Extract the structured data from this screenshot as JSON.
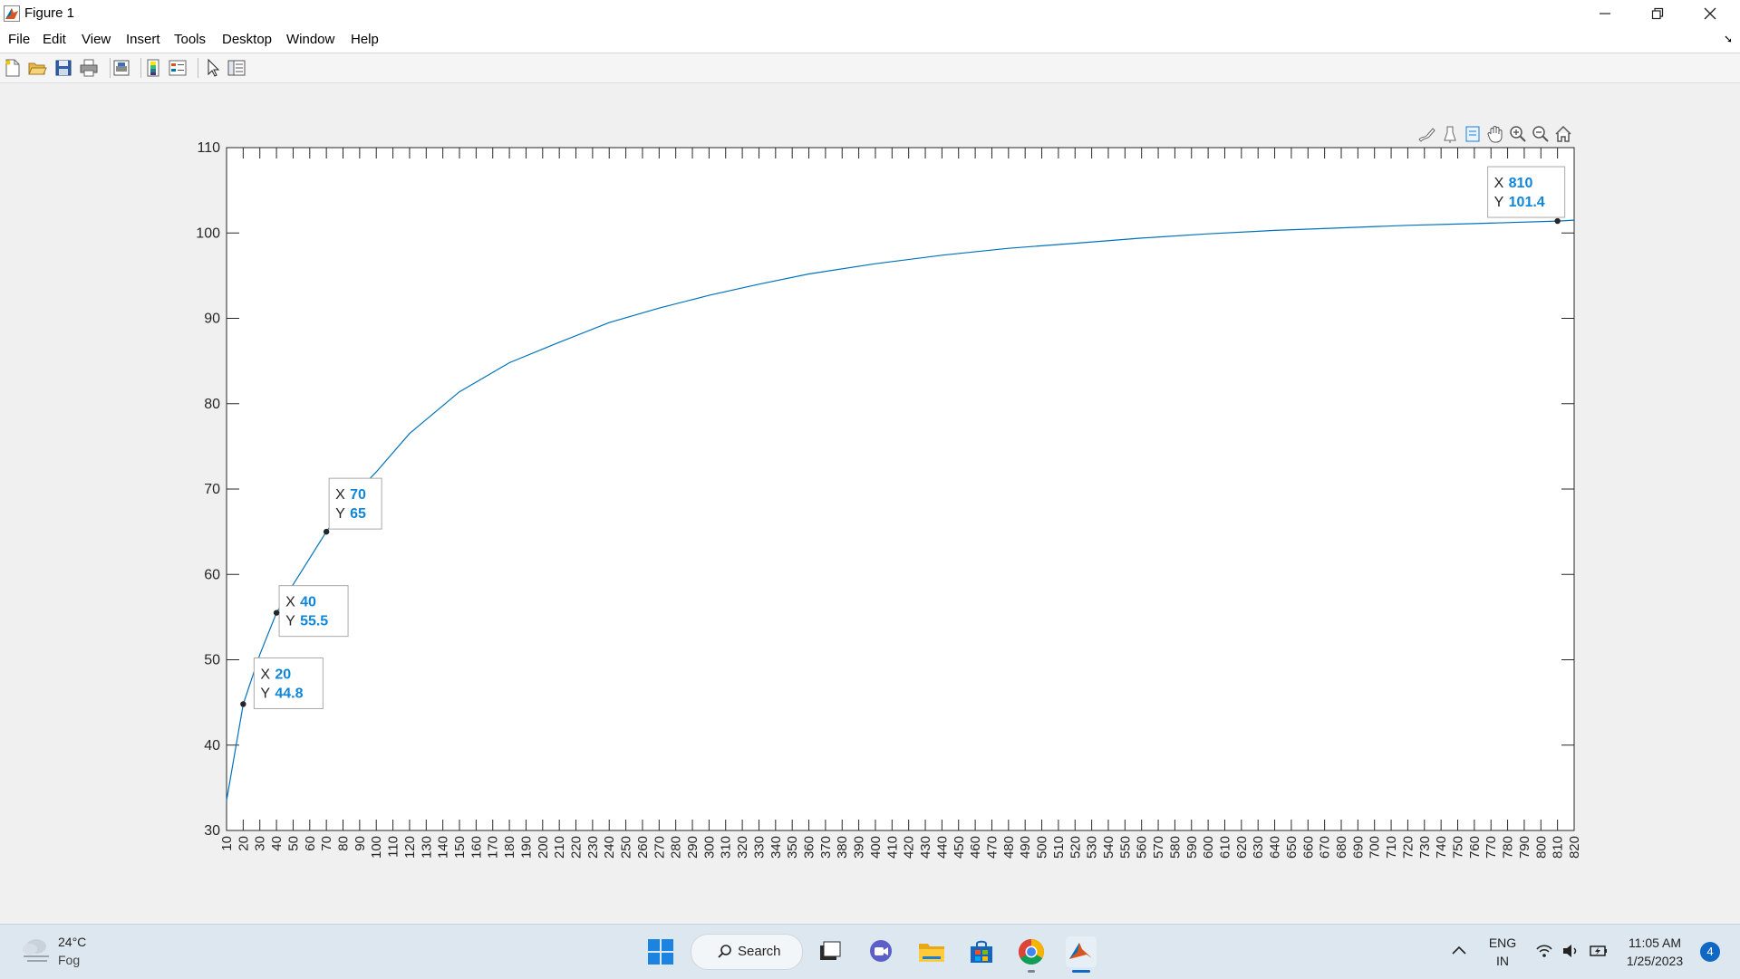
{
  "window": {
    "title": "Figure 1",
    "controls": [
      "minimize",
      "restore",
      "close"
    ]
  },
  "menu": [
    "File",
    "Edit",
    "View",
    "Insert",
    "Tools",
    "Desktop",
    "Window",
    "Help"
  ],
  "toolbar_icons": [
    "new-figure-icon",
    "open-file-icon",
    "save-icon",
    "print-icon",
    "print-preview-icon",
    "colorbar-icon",
    "legend-icon",
    "edit-plot-pointer-icon",
    "property-inspector-icon"
  ],
  "axes_toolbar_icons": [
    "brush-icon",
    "data-tips-icon",
    "select-icon",
    "pan-icon",
    "zoom-in-icon",
    "zoom-out-icon",
    "home-icon"
  ],
  "colors": {
    "line": "#0072bd",
    "datatip_value": "#0f86d9"
  },
  "chart_data": {
    "type": "line",
    "xlim": [
      10,
      820
    ],
    "ylim": [
      30,
      110
    ],
    "xticks": [
      10,
      20,
      30,
      40,
      50,
      60,
      70,
      80,
      90,
      100,
      110,
      120,
      130,
      140,
      150,
      160,
      170,
      180,
      190,
      200,
      210,
      220,
      230,
      240,
      250,
      260,
      270,
      280,
      290,
      300,
      310,
      320,
      330,
      340,
      350,
      360,
      370,
      380,
      390,
      400,
      410,
      420,
      430,
      440,
      450,
      460,
      470,
      480,
      490,
      500,
      510,
      520,
      530,
      540,
      550,
      560,
      570,
      580,
      590,
      600,
      610,
      620,
      630,
      640,
      650,
      660,
      670,
      680,
      690,
      700,
      710,
      720,
      730,
      740,
      750,
      760,
      770,
      780,
      790,
      800,
      810,
      820
    ],
    "yticks": [
      30,
      40,
      50,
      60,
      70,
      80,
      90,
      100,
      110
    ],
    "x": [
      10,
      20,
      30,
      40,
      50,
      60,
      70,
      80,
      90,
      100,
      120,
      150,
      180,
      210,
      240,
      270,
      300,
      330,
      360,
      400,
      440,
      480,
      520,
      560,
      600,
      640,
      680,
      720,
      760,
      810,
      820
    ],
    "y": [
      33.5,
      44.8,
      50.6,
      55.5,
      58.8,
      61.9,
      65,
      67.7,
      70,
      72,
      76.5,
      81.4,
      84.8,
      87.2,
      89.5,
      91.2,
      92.7,
      94,
      95.2,
      96.4,
      97.4,
      98.2,
      98.8,
      99.4,
      99.9,
      100.3,
      100.6,
      100.9,
      101.1,
      101.4,
      101.5
    ],
    "datatips": [
      {
        "x_label": "X",
        "y_label": "Y",
        "x": "20",
        "y": "44.8"
      },
      {
        "x_label": "X",
        "y_label": "Y",
        "x": "40",
        "y": "55.5"
      },
      {
        "x_label": "X",
        "y_label": "Y",
        "x": "70",
        "y": "65"
      },
      {
        "x_label": "X",
        "y_label": "Y",
        "x": "810",
        "y": "101.4"
      }
    ]
  },
  "taskbar": {
    "weather_temp": "24°C",
    "weather_condition": "Fog",
    "search_label": "Search",
    "apps": [
      "start-icon",
      "search-icon",
      "task-view-icon",
      "teams-chat-icon",
      "file-explorer-icon",
      "microsoft-store-icon",
      "chrome-icon",
      "matlab-icon"
    ],
    "language_line1": "ENG",
    "language_line2": "IN",
    "time": "11:05 AM",
    "date": "1/25/2023",
    "notification_count": "4"
  }
}
